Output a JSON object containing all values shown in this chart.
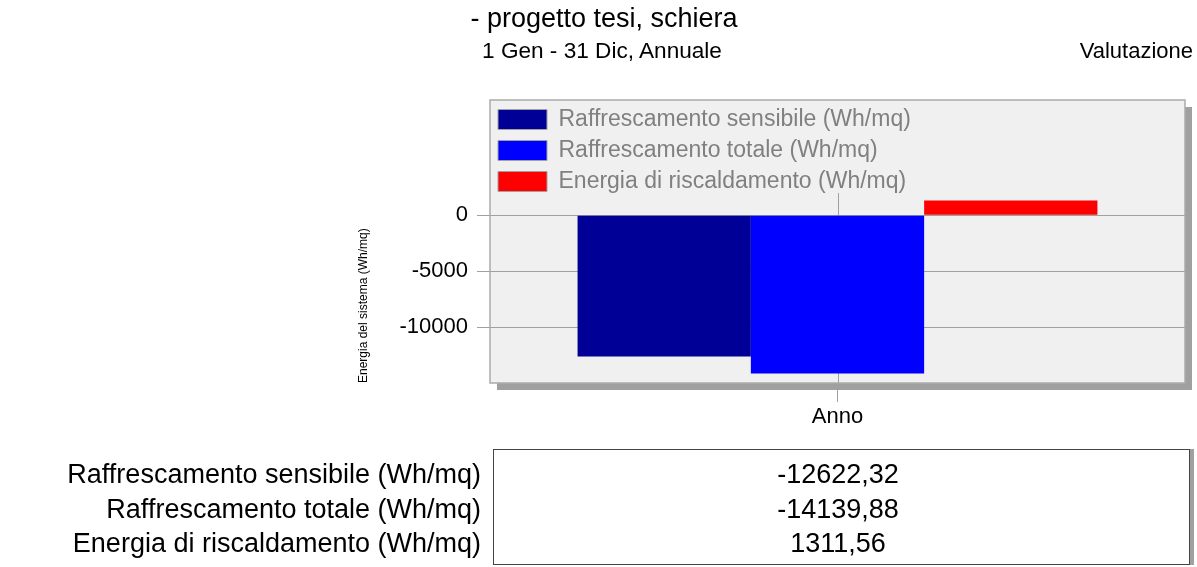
{
  "chart_data": [
    {
      "type": "bar",
      "title": "- progetto tesi, schiera",
      "subtitle": "1 Gen - 31 Dic, Annuale",
      "ylabel": "Energia del sistema (Wh/mq)",
      "annotations": [
        "Valutazione"
      ],
      "categories": [
        "Anno"
      ],
      "series": [
        {
          "name": "Raffrescamento sensibile (Wh/mq)",
          "color": "#000096",
          "values": [
            -12622.32
          ]
        },
        {
          "name": "Raffrescamento totale (Wh/mq)",
          "color": "#0000ff",
          "values": [
            -14139.88
          ]
        },
        {
          "name": "Energia di riscaldamento (Wh/mq)",
          "color": "#ff0000",
          "values": [
            1311.56
          ]
        }
      ],
      "ylim": [
        -15000,
        10300
      ],
      "yticks": [
        -10000,
        -5000,
        0
      ],
      "grid": true,
      "legend": "top left"
    },
    {
      "type": "other",
      "annotations": [
        "Raffrescamento sensibile (Wh/mq)",
        "-12622,32",
        "Raffrescamento totale (Wh/mq)",
        "-14139,88",
        "Energia di riscaldamento (Wh/mq)",
        "1311,56"
      ]
    }
  ]
}
